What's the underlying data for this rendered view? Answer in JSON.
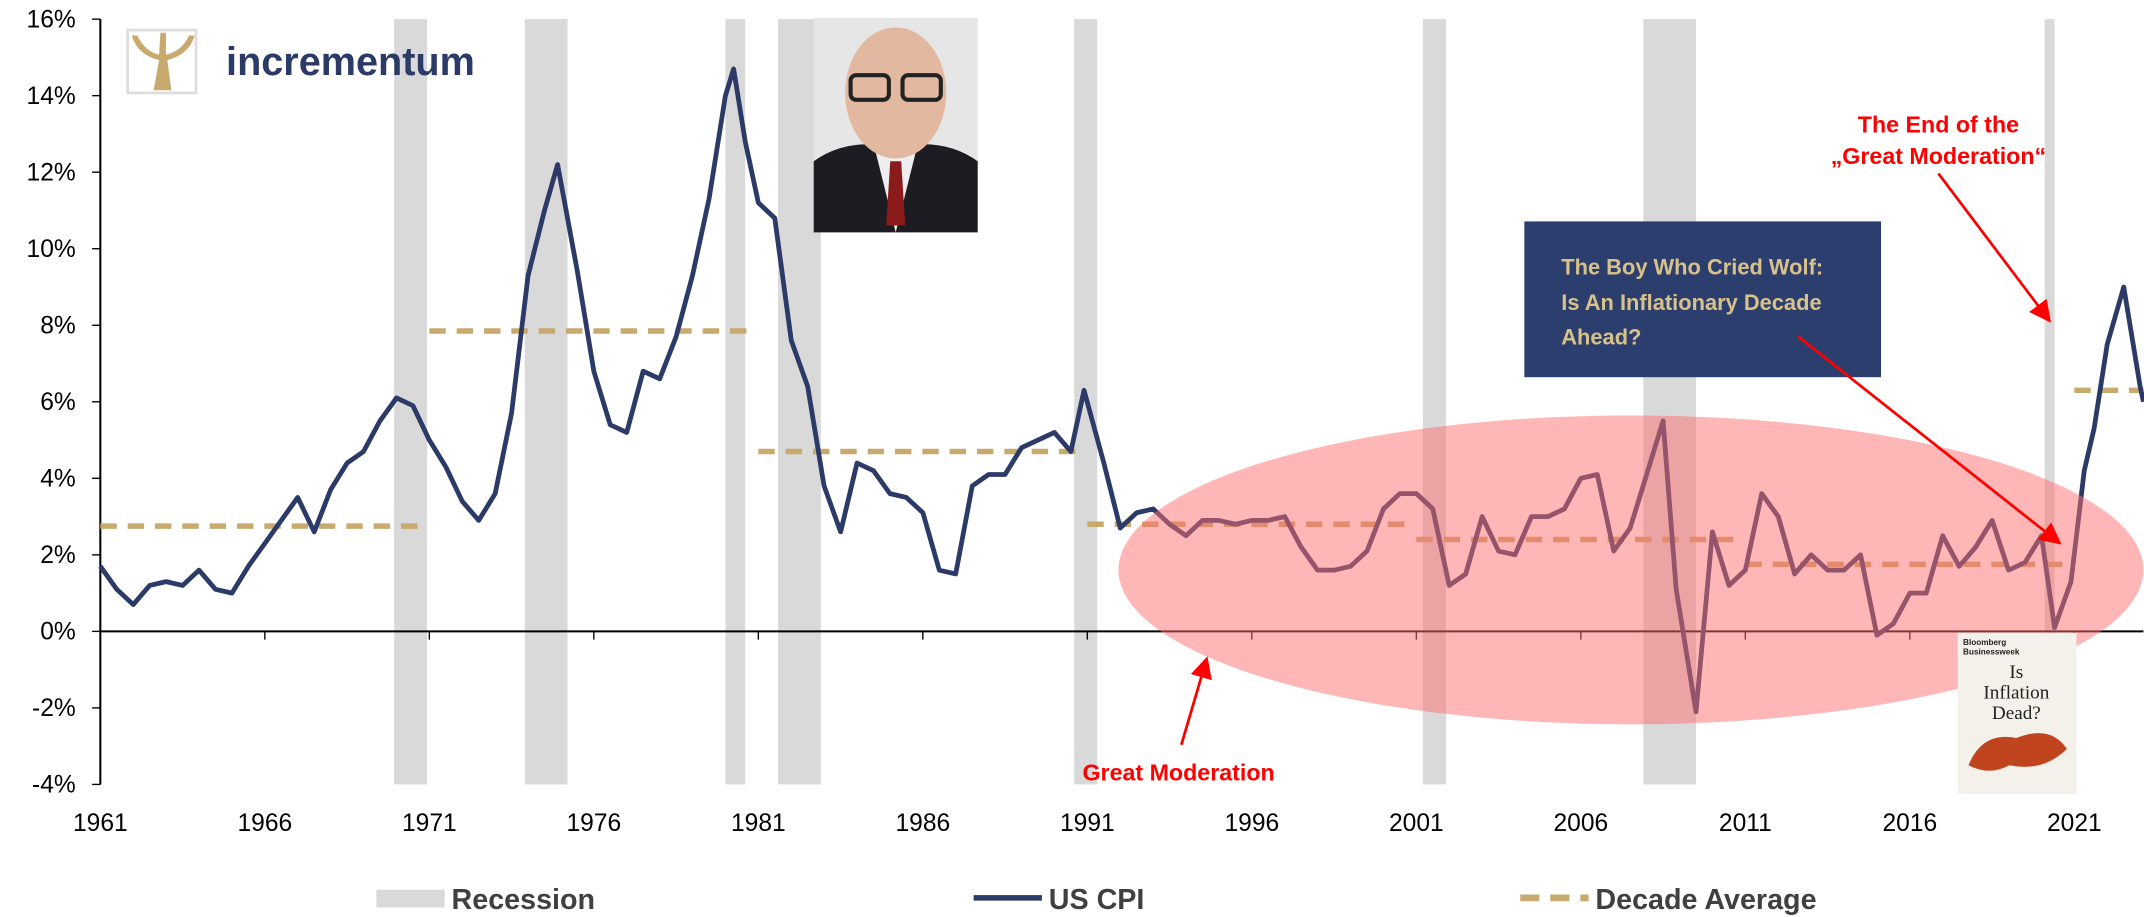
{
  "chart_data": {
    "type": "line",
    "x": [
      1961,
      1961.5,
      1962,
      1962.5,
      1963,
      1963.5,
      1964,
      1964.5,
      1965,
      1965.5,
      1966,
      1966.5,
      1967,
      1967.5,
      1968,
      1968.5,
      1969,
      1969.5,
      1970,
      1970.5,
      1971,
      1971.5,
      1972,
      1972.5,
      1973,
      1973.5,
      1974,
      1974.5,
      1974.9,
      1975.5,
      1976,
      1976.5,
      1977,
      1977.5,
      1978,
      1978.5,
      1979,
      1979.5,
      1980,
      1980.25,
      1980.6,
      1981,
      1981.5,
      1982,
      1982.5,
      1983,
      1983.5,
      1984,
      1984.5,
      1985,
      1985.5,
      1986,
      1986.5,
      1987,
      1987.5,
      1988,
      1988.5,
      1989,
      1989.5,
      1990,
      1990.5,
      1990.9,
      1991.5,
      1992,
      1992.5,
      1993,
      1993.5,
      1994,
      1994.5,
      1995,
      1995.5,
      1996,
      1996.5,
      1997,
      1997.5,
      1998,
      1998.5,
      1999,
      1999.5,
      2000,
      2000.5,
      2001,
      2001.5,
      2002,
      2002.5,
      2003,
      2003.5,
      2004,
      2004.5,
      2005,
      2005.5,
      2006,
      2006.5,
      2007,
      2007.5,
      2008,
      2008.5,
      2008.9,
      2009.5,
      2010,
      2010.5,
      2011,
      2011.5,
      2012,
      2012.5,
      2013,
      2013.5,
      2014,
      2014.5,
      2015,
      2015.5,
      2016,
      2016.5,
      2017,
      2017.5,
      2018,
      2018.5,
      2019,
      2019.5,
      2020,
      2020.4,
      2020.9,
      2021.3,
      2021.6,
      2022,
      2022.5,
      2023,
      2023.1
    ],
    "series": [
      {
        "name": "US CPI",
        "color": "#2b3a67",
        "values": [
          1.7,
          1.1,
          0.7,
          1.2,
          1.3,
          1.2,
          1.6,
          1.1,
          1.0,
          1.7,
          2.3,
          2.9,
          3.5,
          2.6,
          3.7,
          4.4,
          4.7,
          5.5,
          6.1,
          5.9,
          5.0,
          4.3,
          3.4,
          2.9,
          3.6,
          5.7,
          9.3,
          11.0,
          12.2,
          9.4,
          6.8,
          5.4,
          5.2,
          6.8,
          6.6,
          7.7,
          9.3,
          11.3,
          14.0,
          14.7,
          12.8,
          11.2,
          10.8,
          7.6,
          6.4,
          3.8,
          2.6,
          4.4,
          4.2,
          3.6,
          3.5,
          3.1,
          1.6,
          1.5,
          3.8,
          4.1,
          4.1,
          4.8,
          5.0,
          5.2,
          4.7,
          6.3,
          4.4,
          2.7,
          3.1,
          3.2,
          2.8,
          2.5,
          2.9,
          2.9,
          2.8,
          2.9,
          2.9,
          3.0,
          2.2,
          1.6,
          1.6,
          1.7,
          2.1,
          3.2,
          3.6,
          3.6,
          3.2,
          1.2,
          1.5,
          3.0,
          2.1,
          2.0,
          3.0,
          3.0,
          3.2,
          4.0,
          4.1,
          2.1,
          2.7,
          4.1,
          5.5,
          1.1,
          -2.1,
          2.6,
          1.2,
          1.6,
          3.6,
          3.0,
          1.5,
          2.0,
          1.6,
          1.6,
          2.0,
          -0.1,
          0.2,
          1.0,
          1.0,
          2.5,
          1.7,
          2.2,
          2.9,
          1.6,
          1.8,
          2.5,
          0.1,
          1.3,
          4.2,
          5.3,
          7.5,
          9.0,
          6.4,
          6.0
        ]
      }
    ],
    "recessions": {
      "name": "Recession",
      "color": "#d9d9d9",
      "start": [
        1969.93,
        1973.9,
        1980.0,
        1981.6,
        1990.6,
        2001.2,
        2007.9,
        2020.1
      ],
      "end": [
        1970.93,
        1975.2,
        1980.6,
        1982.9,
        1991.3,
        2001.9,
        2009.5,
        2020.4
      ]
    },
    "decade_average": {
      "name": "Decade Average",
      "color": "#c8a96e",
      "start": [
        1961,
        1971,
        1981,
        1991,
        2001,
        2011,
        2021
      ],
      "end": [
        1970.9,
        1980.9,
        1990.9,
        2000.9,
        2010.9,
        2020.9,
        2023.1
      ],
      "values": [
        2.75,
        7.85,
        4.7,
        2.8,
        2.4,
        1.75,
        6.3
      ]
    },
    "xlim": [
      1961,
      2023.1
    ],
    "xticks": [
      1961,
      1966,
      1971,
      1976,
      1981,
      1986,
      1991,
      1996,
      2001,
      2006,
      2011,
      2016,
      2021
    ],
    "ylim": [
      -4,
      16
    ],
    "yticks": [
      {
        "value": -4,
        "label": "-4%"
      },
      {
        "value": -2,
        "label": "-2%"
      },
      {
        "value": 0,
        "label": "0%"
      },
      {
        "value": 2,
        "label": "2%"
      },
      {
        "value": 4,
        "label": "4%"
      },
      {
        "value": 6,
        "label": "6%"
      },
      {
        "value": 8,
        "label": "8%"
      },
      {
        "value": 10,
        "label": "10%"
      },
      {
        "value": 12,
        "label": "12%"
      },
      {
        "value": 14,
        "label": "14%"
      },
      {
        "value": 16,
        "label": "16%"
      }
    ],
    "logo_text": "incrementum",
    "annotation_end": [
      "The End of the",
      "„Great Moderation“"
    ],
    "annotation_box": [
      "The Boy Who Cried Wolf:",
      "Is An Inflationary Decade",
      "Ahead?"
    ],
    "annotation_gm": "Great Moderation",
    "magazine": {
      "publisher": [
        "Bloomberg",
        "Businessweek"
      ],
      "headline": [
        "Is",
        "Inflation",
        "Dead?"
      ]
    }
  }
}
